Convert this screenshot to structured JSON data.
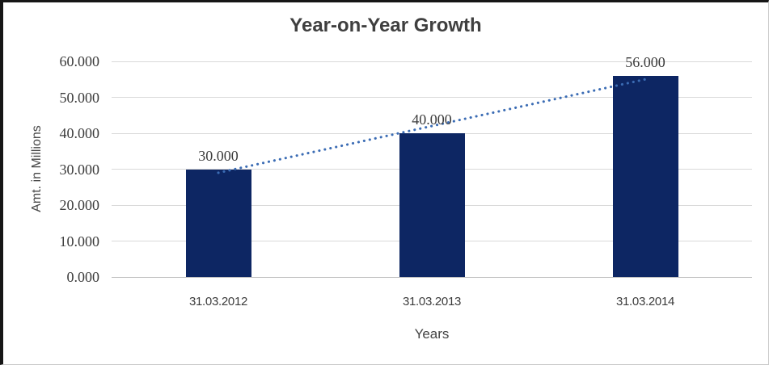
{
  "chart_data": {
    "type": "bar",
    "title": "Year-on-Year Growth",
    "categories": [
      "31.03.2012",
      "31.03.2013",
      "31.03.2014"
    ],
    "values": [
      30,
      40,
      56
    ],
    "data_labels": [
      "30.000",
      "40.000",
      "56.000"
    ],
    "xlabel": "Years",
    "ylabel": "Amt. in Millions",
    "ylim": [
      0,
      60
    ],
    "ytick_step": 10,
    "ytick_labels": [
      "0.000",
      "10.000",
      "20.000",
      "30.000",
      "40.000",
      "50.000",
      "60.000"
    ],
    "grid": true,
    "legend": "none",
    "trendline": {
      "type": "linear",
      "style": "dotted"
    },
    "colors": {
      "bar": "#0d2663",
      "trendline": "#3b6cb4",
      "gridline": "#d9d9d9",
      "axis_line": "#bfbfbf"
    }
  }
}
